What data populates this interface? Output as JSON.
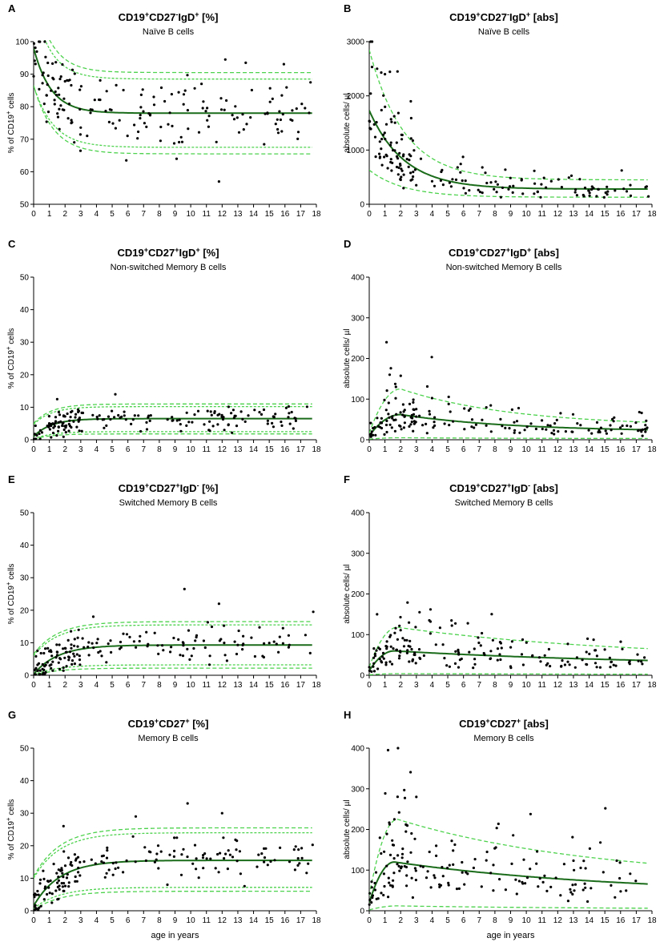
{
  "chart_data": [
    {
      "id": "A",
      "type": "scatter",
      "unit_kind": "percent",
      "title_main": "CD19",
      "title_sup1": "+",
      "title_mid": "CD27",
      "title_sup2": "-",
      "title_end": "IgD",
      "title_sup3": "+",
      "title_bracket": " [%]",
      "subtitle": "Naïve B cells",
      "ylabel_prefix": "% of CD19",
      "ylabel_sup": "+",
      "ylabel_suffix": " cells",
      "xlabel": "",
      "xlim": [
        0,
        18
      ],
      "ylim": [
        50,
        100
      ],
      "xticks": [
        0,
        1,
        2,
        3,
        4,
        5,
        6,
        7,
        8,
        9,
        10,
        11,
        12,
        13,
        14,
        15,
        16,
        17,
        18
      ],
      "yticks": [
        50,
        60,
        70,
        80,
        90,
        100
      ],
      "fit": {
        "model": "exp",
        "a": 78,
        "b": 20,
        "k": 0.9
      },
      "bands": [
        {
          "model": "exp",
          "a": 90.5,
          "b": 25,
          "k": 0.9,
          "style": "band"
        },
        {
          "model": "exp",
          "a": 88.5,
          "b": 23,
          "k": 0.9,
          "style": "band2"
        },
        {
          "model": "exp",
          "a": 67.5,
          "b": 19,
          "k": 0.8,
          "style": "band2"
        },
        {
          "model": "exp",
          "a": 65.5,
          "b": 21,
          "k": 0.8,
          "style": "band"
        }
      ],
      "points": {
        "seed": 11,
        "n": 170,
        "spread": 8,
        "outliers": [
          [
            11.8,
            57
          ],
          [
            12.2,
            94.5
          ],
          [
            13.5,
            93.5
          ],
          [
            9.1,
            64
          ],
          [
            5.9,
            63.5
          ]
        ]
      }
    },
    {
      "id": "B",
      "type": "scatter",
      "unit_kind": "abs",
      "title_main": "CD19",
      "title_sup1": "+",
      "title_mid": "CD27",
      "title_sup2": "-",
      "title_end": "IgD",
      "title_sup3": "+",
      "title_bracket": " [abs]",
      "subtitle": "Naïve B cells",
      "ylabel_prefix": "absolute cells/ µl",
      "ylabel_sup": "",
      "ylabel_suffix": "",
      "xlabel": "",
      "xlim": [
        0,
        18
      ],
      "ylim": [
        0,
        3000
      ],
      "xticks": [
        0,
        1,
        2,
        3,
        4,
        5,
        6,
        7,
        8,
        9,
        10,
        11,
        12,
        13,
        14,
        15,
        16,
        17,
        18
      ],
      "yticks": [
        0,
        1000,
        2000,
        3000
      ],
      "fit": {
        "model": "exp",
        "a": 280,
        "b": 1450,
        "k": 0.45
      },
      "bands": [
        {
          "model": "exp",
          "a": 450,
          "b": 2400,
          "k": 0.45,
          "style": "band"
        },
        {
          "model": "exp",
          "a": 130,
          "b": 500,
          "k": 0.45,
          "style": "band"
        }
      ],
      "points": {
        "seed": 23,
        "n": 170,
        "spread": 0.35,
        "outliers": [
          [
            1.0,
            2400
          ],
          [
            0.5,
            2500
          ],
          [
            1.8,
            2450
          ]
        ]
      }
    },
    {
      "id": "C",
      "type": "scatter",
      "unit_kind": "percent",
      "title_main": "CD19",
      "title_sup1": "+",
      "title_mid": "CD27",
      "title_sup2": "+",
      "title_end": "IgD",
      "title_sup3": "+",
      "title_bracket": " [%]",
      "subtitle": "Non-switched Memory B cells",
      "ylabel_prefix": "% of CD19",
      "ylabel_sup": "+",
      "ylabel_suffix": " cells",
      "xlabel": "",
      "xlim": [
        0,
        18
      ],
      "ylim": [
        0,
        50
      ],
      "xticks": [
        0,
        1,
        2,
        3,
        4,
        5,
        6,
        7,
        8,
        9,
        10,
        11,
        12,
        13,
        14,
        15,
        16,
        17,
        18
      ],
      "yticks": [
        0,
        10,
        20,
        30,
        40,
        50
      ],
      "fit": {
        "model": "rise",
        "a": 6.5,
        "b": 5.5,
        "k": 0.9
      },
      "bands": [
        {
          "model": "rise",
          "a": 11,
          "b": 6,
          "k": 0.9,
          "style": "band"
        },
        {
          "model": "rise",
          "a": 10.2,
          "b": 5.5,
          "k": 0.9,
          "style": "band2"
        },
        {
          "model": "rise",
          "a": 2.5,
          "b": 2.3,
          "k": 0.9,
          "style": "band2"
        },
        {
          "model": "rise",
          "a": 1.8,
          "b": 1.6,
          "k": 0.9,
          "style": "band"
        }
      ],
      "points": {
        "seed": 37,
        "n": 170,
        "spread": 2.6,
        "outliers": [
          [
            5.2,
            14
          ],
          [
            1.5,
            12.5
          ]
        ]
      }
    },
    {
      "id": "D",
      "type": "scatter",
      "unit_kind": "abs",
      "title_main": "CD19",
      "title_sup1": "+",
      "title_mid": "CD27",
      "title_sup2": "+",
      "title_end": "IgD",
      "title_sup3": "+",
      "title_bracket": " [abs]",
      "subtitle": "Non-switched Memory B cells",
      "ylabel_prefix": "absolute cells/ µl",
      "ylabel_sup": "",
      "ylabel_suffix": "",
      "xlabel": "",
      "xlim": [
        0,
        18
      ],
      "ylim": [
        0,
        400
      ],
      "xticks": [
        0,
        1,
        2,
        3,
        4,
        5,
        6,
        7,
        8,
        9,
        10,
        11,
        12,
        13,
        14,
        15,
        16,
        17,
        18
      ],
      "yticks": [
        0,
        100,
        200,
        300,
        400
      ],
      "fit": {
        "model": "hump",
        "base": 20,
        "peak": 62,
        "tpeak": 2,
        "decay": 0.14
      },
      "bands": [
        {
          "model": "hump",
          "base": 33,
          "peak": 125,
          "tpeak": 2,
          "decay": 0.14,
          "style": "band"
        },
        {
          "model": "hump",
          "base": 3,
          "peak": 5,
          "tpeak": 2,
          "decay": 0.14,
          "style": "band"
        }
      ],
      "points": {
        "seed": 41,
        "n": 170,
        "spread": 0.45,
        "outliers": [
          [
            1.1,
            240
          ],
          [
            1.3,
            160
          ],
          [
            1.7,
            130
          ]
        ]
      }
    },
    {
      "id": "E",
      "type": "scatter",
      "unit_kind": "percent",
      "title_main": "CD19",
      "title_sup1": "+",
      "title_mid": "CD27",
      "title_sup2": "+",
      "title_end": "IgD",
      "title_sup3": "-",
      "title_bracket": " [%]",
      "subtitle": "Switched Memory B cells",
      "ylabel_prefix": "% of CD19",
      "ylabel_sup": "+",
      "ylabel_suffix": " cells",
      "xlabel": "",
      "xlim": [
        0,
        18
      ],
      "ylim": [
        0,
        50
      ],
      "xticks": [
        0,
        1,
        2,
        3,
        4,
        5,
        6,
        7,
        8,
        9,
        10,
        11,
        12,
        13,
        14,
        15,
        16,
        17,
        18
      ],
      "yticks": [
        0,
        10,
        20,
        30,
        40,
        50
      ],
      "fit": {
        "model": "rise",
        "a": 9.3,
        "b": 9,
        "k": 0.65
      },
      "bands": [
        {
          "model": "rise",
          "a": 16.5,
          "b": 10,
          "k": 0.65,
          "style": "band"
        },
        {
          "model": "rise",
          "a": 15.5,
          "b": 9.5,
          "k": 0.65,
          "style": "band2"
        },
        {
          "model": "rise",
          "a": 3.2,
          "b": 3,
          "k": 0.65,
          "style": "band2"
        },
        {
          "model": "rise",
          "a": 2.2,
          "b": 2.2,
          "k": 0.65,
          "style": "band"
        }
      ],
      "points": {
        "seed": 53,
        "n": 170,
        "spread": 4,
        "outliers": [
          [
            9.6,
            26.5
          ],
          [
            11.8,
            22
          ],
          [
            17.8,
            19.5
          ],
          [
            3.8,
            18
          ]
        ]
      }
    },
    {
      "id": "F",
      "type": "scatter",
      "unit_kind": "abs",
      "title_main": "CD19",
      "title_sup1": "+",
      "title_mid": "CD27",
      "title_sup2": "+",
      "title_end": "IgD",
      "title_sup3": "-",
      "title_bracket": " [abs]",
      "subtitle": "Switched Memory B cells",
      "ylabel_prefix": "absolute cells/ µl",
      "ylabel_sup": "",
      "ylabel_suffix": "",
      "xlabel": "",
      "xlim": [
        0,
        18
      ],
      "ylim": [
        0,
        400
      ],
      "xticks": [
        0,
        1,
        2,
        3,
        4,
        5,
        6,
        7,
        8,
        9,
        10,
        11,
        12,
        13,
        14,
        15,
        16,
        17,
        18
      ],
      "yticks": [
        0,
        100,
        200,
        300,
        400
      ],
      "fit": {
        "model": "hump",
        "base": 22,
        "peak": 60,
        "tpeak": 1.6,
        "decay": 0.06
      },
      "bands": [
        {
          "model": "hump",
          "base": 40,
          "peak": 118,
          "tpeak": 1.8,
          "decay": 0.07,
          "style": "band"
        },
        {
          "model": "hump",
          "base": 2,
          "peak": 4,
          "tpeak": 1.8,
          "decay": 0.07,
          "style": "band"
        }
      ],
      "points": {
        "seed": 61,
        "n": 170,
        "spread": 0.45,
        "outliers": [
          [
            3.2,
            155
          ],
          [
            3.9,
            162
          ],
          [
            0.5,
            150
          ]
        ]
      }
    },
    {
      "id": "G",
      "type": "scatter",
      "unit_kind": "percent",
      "title_main": "CD19",
      "title_sup1": "+",
      "title_mid": "CD27",
      "title_sup2": "+",
      "title_end": "",
      "title_sup3": "",
      "title_bracket": " [%]",
      "subtitle": "Memory B cells",
      "ylabel_prefix": "% of CD19",
      "ylabel_sup": "+",
      "ylabel_suffix": " cells",
      "xlabel": "age in years",
      "xlim": [
        0,
        18
      ],
      "ylim": [
        0,
        50
      ],
      "xticks": [
        0,
        1,
        2,
        3,
        4,
        5,
        6,
        7,
        8,
        9,
        10,
        11,
        12,
        13,
        14,
        15,
        16,
        17,
        18
      ],
      "yticks": [
        0,
        10,
        20,
        30,
        40,
        50
      ],
      "fit": {
        "model": "rise",
        "a": 15.5,
        "b": 14,
        "k": 0.6
      },
      "bands": [
        {
          "model": "rise",
          "a": 25.5,
          "b": 15,
          "k": 0.6,
          "style": "band"
        },
        {
          "model": "rise",
          "a": 24,
          "b": 14,
          "k": 0.6,
          "style": "band2"
        },
        {
          "model": "rise",
          "a": 7.2,
          "b": 6.5,
          "k": 0.6,
          "style": "band2"
        },
        {
          "model": "rise",
          "a": 6,
          "b": 5.8,
          "k": 0.6,
          "style": "band"
        }
      ],
      "points": {
        "seed": 71,
        "n": 170,
        "spread": 5,
        "outliers": [
          [
            9.8,
            33
          ],
          [
            12.0,
            30
          ],
          [
            6.5,
            29
          ],
          [
            1.9,
            26
          ]
        ]
      }
    },
    {
      "id": "H",
      "type": "scatter",
      "unit_kind": "abs",
      "title_main": "CD19",
      "title_sup1": "+",
      "title_mid": "CD27",
      "title_sup2": "+",
      "title_end": "",
      "title_sup3": "",
      "title_bracket": " [abs]",
      "subtitle": "Memory B cells",
      "ylabel_prefix": "absolute cells/ µl",
      "ylabel_sup": "",
      "ylabel_suffix": "",
      "xlabel": "age in years",
      "xlim": [
        0,
        18
      ],
      "ylim": [
        0,
        400
      ],
      "xticks": [
        0,
        1,
        2,
        3,
        4,
        5,
        6,
        7,
        8,
        9,
        10,
        11,
        12,
        13,
        14,
        15,
        16,
        17,
        18
      ],
      "yticks": [
        0,
        100,
        200,
        300,
        400
      ],
      "fit": {
        "model": "hump",
        "base": 40,
        "peak": 120,
        "tpeak": 1.6,
        "decay": 0.07
      },
      "bands": [
        {
          "model": "hump",
          "base": 75,
          "peak": 225,
          "tpeak": 1.8,
          "decay": 0.08,
          "style": "band"
        },
        {
          "model": "hump",
          "base": 4,
          "peak": 12,
          "tpeak": 1.8,
          "decay": 0.08,
          "style": "band"
        }
      ],
      "points": {
        "seed": 83,
        "n": 170,
        "spread": 0.45,
        "outliers": [
          [
            1.2,
            395
          ],
          [
            3.0,
            280
          ],
          [
            1.6,
            225
          ]
        ]
      }
    }
  ]
}
